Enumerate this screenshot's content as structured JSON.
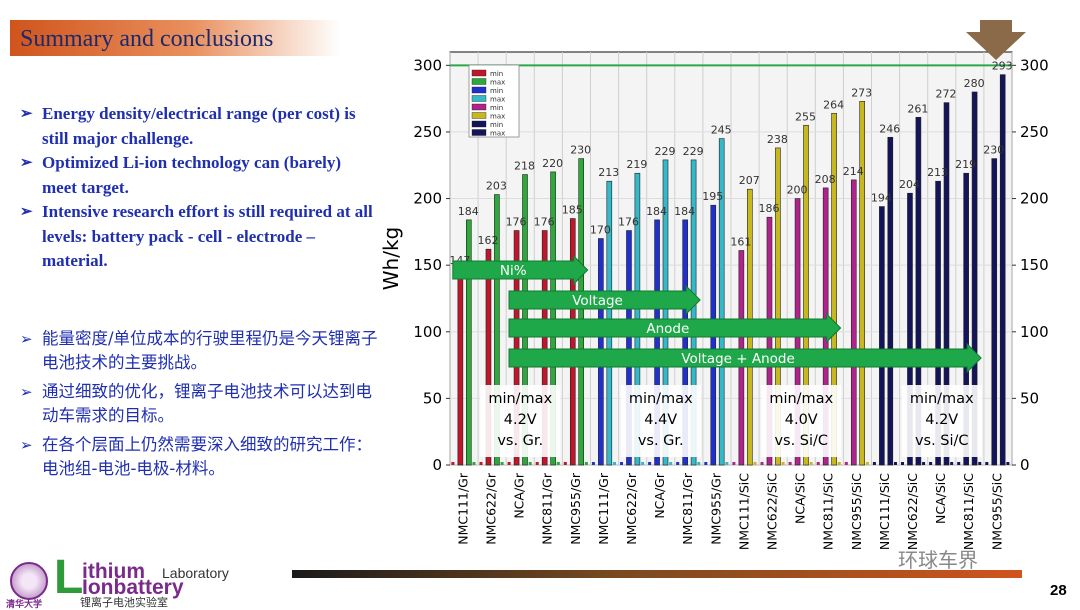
{
  "slide": {
    "title": "Summary and conclusions",
    "page_number": "28",
    "bullets_en": [
      "Energy density/electrical range (per cost) is still major challenge.",
      "Optimized Li-ion technology can (barely) meet target.",
      "Intensive research effort is still required at all levels: battery pack - cell - electrode – material."
    ],
    "bullets_zh": [
      "能量密度/单位成本的行驶里程仍是今天锂离子电池技术的主要挑战。",
      "通过细致的优化，锂离子电池技术可以达到电动车需求的目标。",
      "在各个层面上仍然需要深入细致的研究工作：电池组-电池-电极-材料。"
    ],
    "bullet_marker": "➢",
    "logo": {
      "L": "L",
      "thium": "ithium",
      "lab": "Laboratory",
      "ion": "Ionbattery",
      "zh": "锂离子电池实验室",
      "seal_caption": "清华大学"
    },
    "watermark": "环球车界"
  },
  "chart_data": {
    "type": "bar",
    "ylabel": "Wh/kg",
    "ylim": [
      0,
      310
    ],
    "yticks": [
      0,
      50,
      100,
      150,
      200,
      250,
      300
    ],
    "target_line": 300,
    "categories": [
      "NMC111/Gr",
      "NMC622/Gr",
      "NCA/Gr",
      "NMC811/Gr",
      "NMC955/Gr",
      "NMC111/Gr",
      "NMC622/Gr",
      "NCA/Gr",
      "NMC811/Gr",
      "NMC955/Gr",
      "NMC111/SiC",
      "NMC622/SiC",
      "NCA/SiC",
      "NMC811/SiC",
      "NMC955/SiC",
      "NMC111/SiC",
      "NMC622/SiC",
      "NCA/SiC",
      "NMC811/SiC",
      "NMC955/SiC"
    ],
    "series": [
      {
        "name": "min",
        "values": [
          147,
          162,
          176,
          176,
          185,
          170,
          176,
          184,
          184,
          195,
          161,
          186,
          200,
          208,
          214,
          194,
          204,
          213,
          219,
          230
        ],
        "min_color": "#c0152a"
      },
      {
        "name": "max",
        "values": [
          184,
          203,
          218,
          220,
          230,
          213,
          219,
          229,
          229,
          245,
          207,
          238,
          255,
          264,
          273,
          246,
          261,
          272,
          280,
          293
        ]
      }
    ],
    "min_label_visible": [
      true,
      true,
      true,
      true,
      true,
      true,
      true,
      true,
      true,
      true,
      true,
      true,
      true,
      true,
      true,
      true,
      true,
      true,
      true,
      true
    ],
    "group_colors": [
      {
        "min": "#c0152a",
        "max": "#2da83a"
      },
      {
        "min": "#1f2fd0",
        "max": "#35b8c8"
      },
      {
        "min": "#b0238a",
        "max": "#c8b820"
      },
      {
        "min": "#14145a",
        "max": "#14145a"
      }
    ],
    "legend": [
      "min",
      "max",
      "min",
      "max",
      "min",
      "max",
      "min",
      "max"
    ],
    "groups": [
      {
        "line1": "min/max",
        "line2": "4.2V",
        "line3": "vs. Gr."
      },
      {
        "line1": "min/max",
        "line2": "4.4V",
        "line3": "vs. Gr."
      },
      {
        "line1": "min/max",
        "line2": "4.0V",
        "line3": "vs. Si/C"
      },
      {
        "line1": "min/max",
        "line2": "4.2V",
        "line3": "vs. Si/C"
      }
    ],
    "arrows": [
      {
        "label": "Ni%",
        "from": 0,
        "to": 4
      },
      {
        "label": "Voltage",
        "from": 2,
        "to": 8
      },
      {
        "label": "Anode",
        "from": 2,
        "to": 13
      },
      {
        "label": "Voltage + Anode",
        "from": 2,
        "to": 18
      }
    ],
    "colors": {
      "target_line": "#2aa84a",
      "arrow": "#1fa84a",
      "frame": "#333333"
    }
  }
}
